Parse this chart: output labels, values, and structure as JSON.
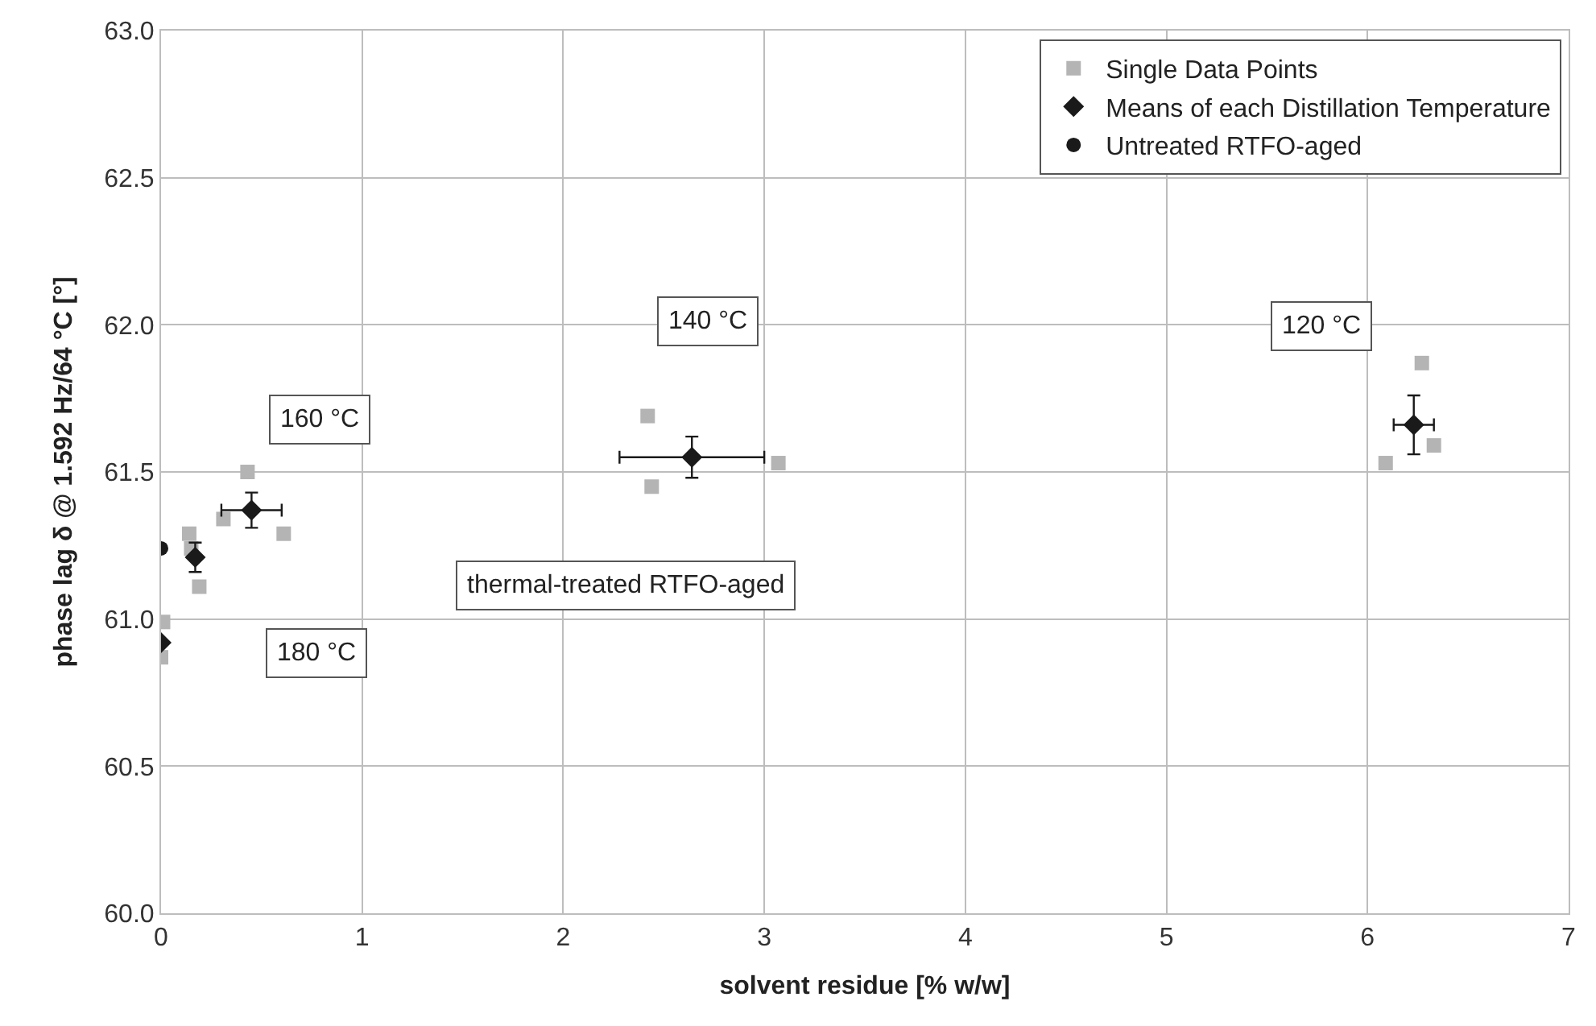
{
  "chart_data": {
    "type": "scatter",
    "xlabel": "solvent residue [% w/w]",
    "ylabel": "phase lag δ @ 1.592 Hz/64 °C [°]",
    "xlim": [
      0,
      7
    ],
    "xticks": [
      0,
      1,
      2,
      3,
      4,
      5,
      6,
      7
    ],
    "ylim": [
      60.0,
      63.0
    ],
    "yticks": [
      {
        "value": 60.0,
        "label": "60.0"
      },
      {
        "value": 60.5,
        "label": "60.5"
      },
      {
        "value": 61.0,
        "label": "61.0"
      },
      {
        "value": 61.5,
        "label": "61.5"
      },
      {
        "value": 62.0,
        "label": "62.0"
      },
      {
        "value": 62.5,
        "label": "62.5"
      },
      {
        "value": 63.0,
        "label": "63.0"
      }
    ],
    "grid": true,
    "legend": "top right",
    "series": [
      {
        "name": "Single Data Points",
        "color": "#b4b4b4",
        "marker": "square",
        "x": [
          0.43,
          0.31,
          0.61,
          0.14,
          0.15,
          0.19,
          0.01,
          0.0,
          2.42,
          2.44,
          3.07,
          6.09,
          6.27,
          6.33
        ],
        "values": [
          61.5,
          61.34,
          61.29,
          61.29,
          61.24,
          61.11,
          60.99,
          60.87,
          61.69,
          61.45,
          61.53,
          61.53,
          61.87,
          61.59
        ]
      },
      {
        "name": "Means of each Distillation Temperature",
        "color": "#1a1a1a",
        "marker": "diamond",
        "x": [
          0.45,
          0.17,
          0.0,
          2.64,
          6.23
        ],
        "values": [
          61.37,
          61.21,
          60.92,
          61.55,
          61.66
        ],
        "errors": [
          0.06,
          0.05,
          null,
          0.07,
          0.1
        ],
        "xerrors": [
          0.15,
          null,
          null,
          0.36,
          0.1
        ]
      },
      {
        "name": "Untreated RTFO-aged",
        "color": "#1a1a1a",
        "marker": "circle",
        "x": [
          0.0
        ],
        "values": [
          61.24
        ]
      }
    ],
    "annotations": [
      "160 °C",
      "thermal-treated RTFO-aged",
      "180 °C",
      "140 °C",
      "120 °C"
    ]
  }
}
